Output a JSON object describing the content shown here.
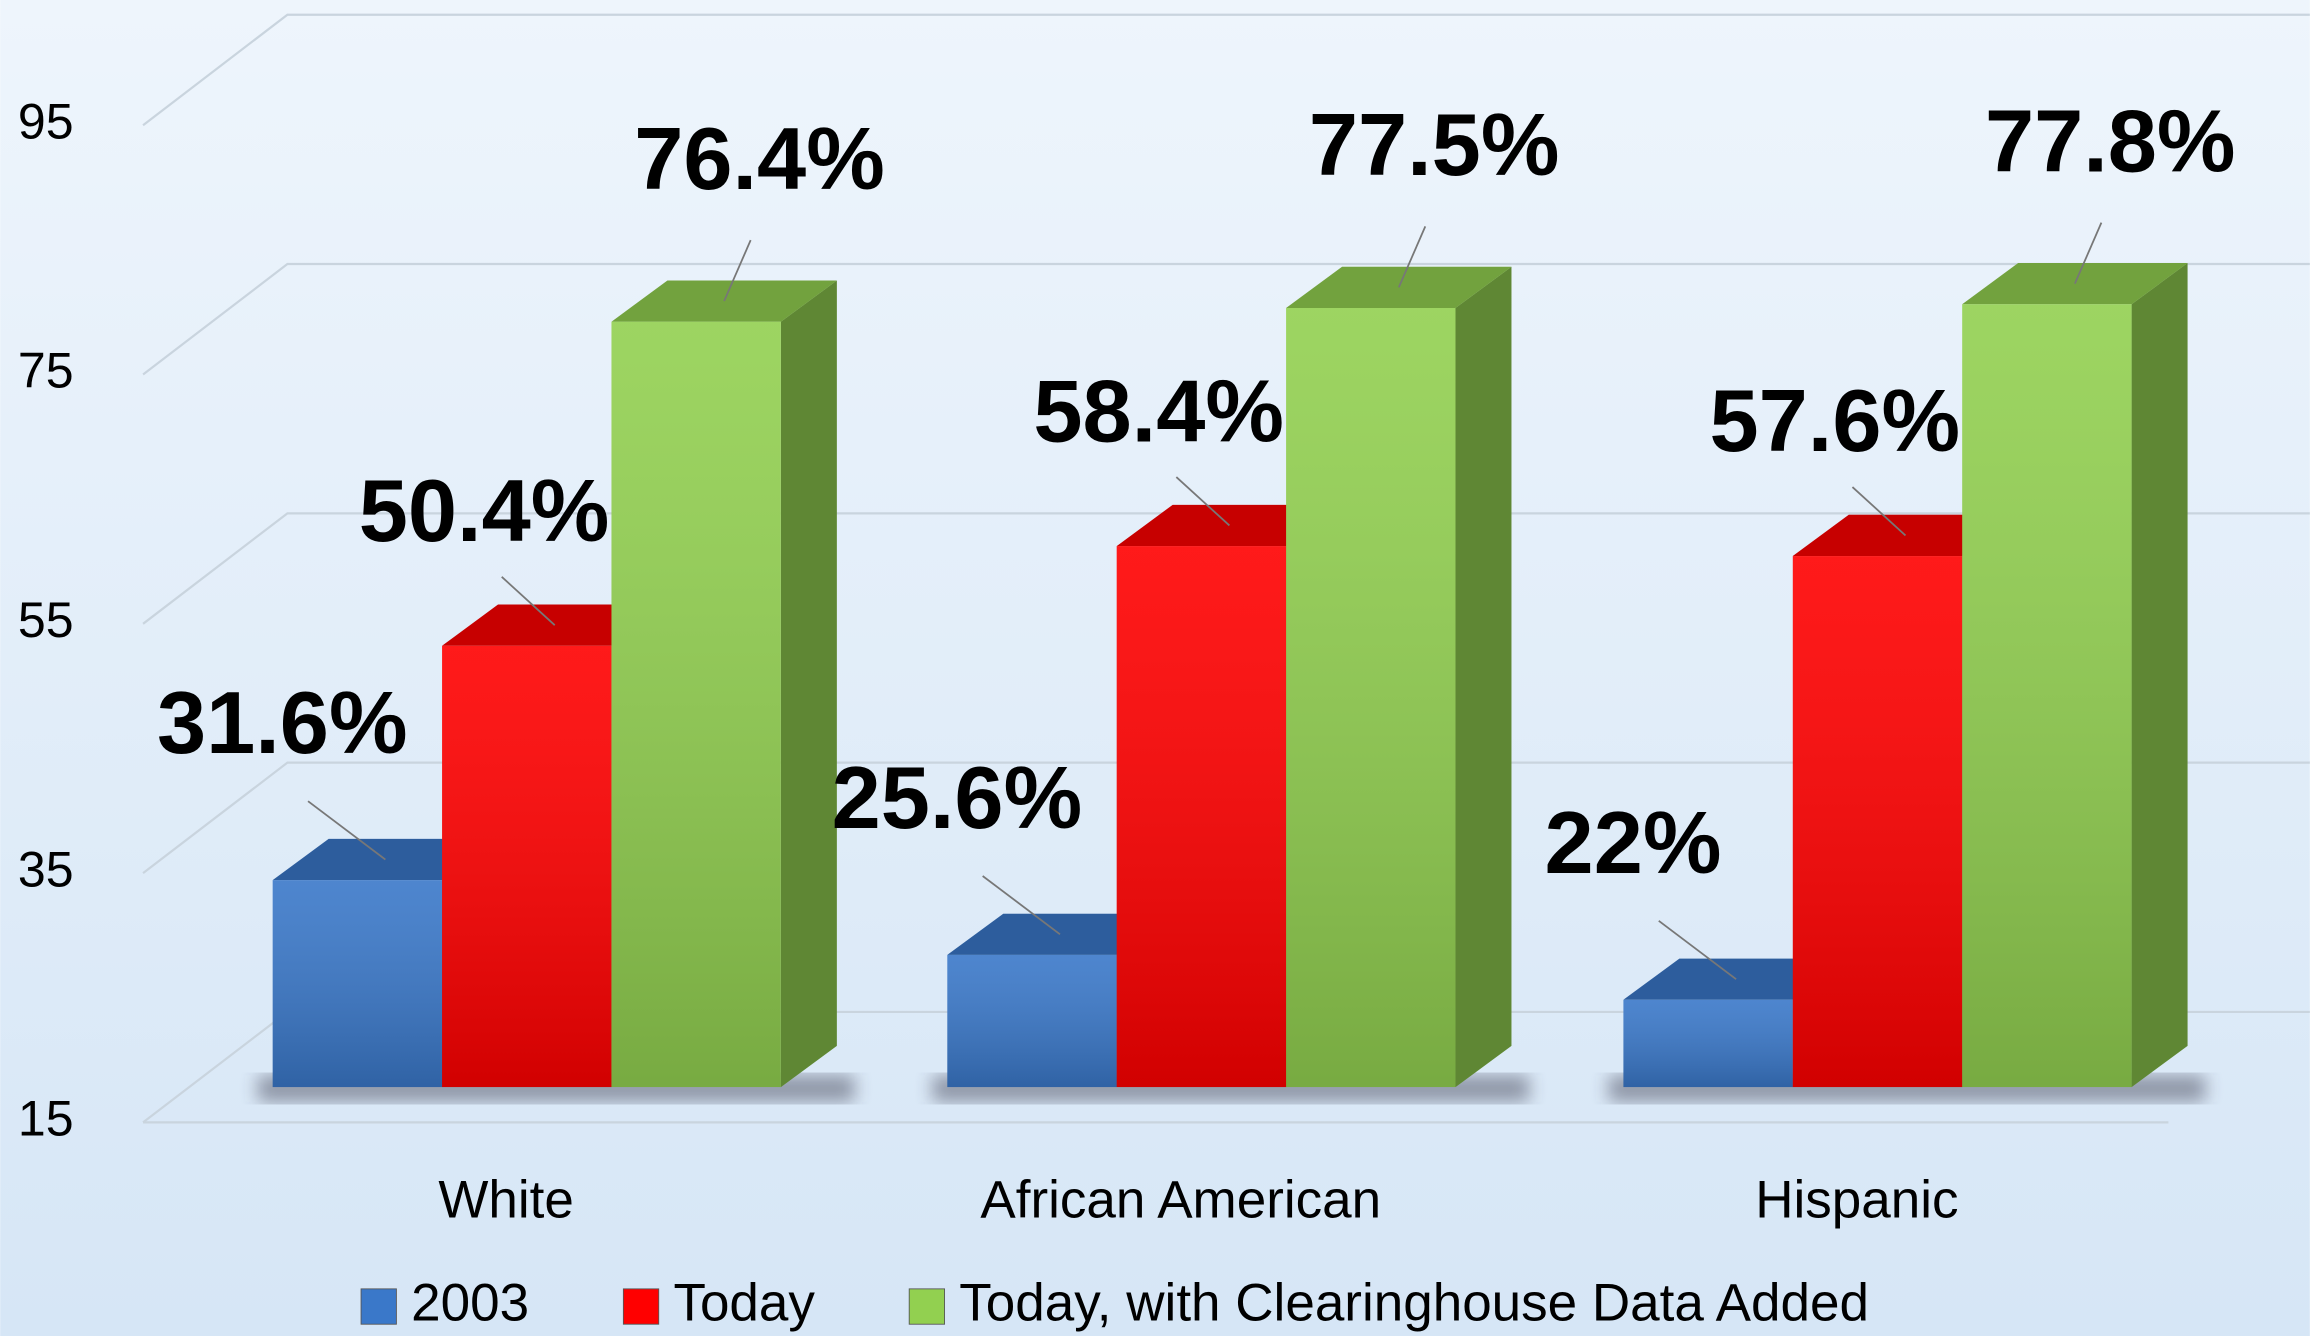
{
  "chart_data": {
    "type": "bar3d",
    "categories": [
      "White",
      "African American",
      "Hispanic"
    ],
    "series": [
      {
        "name": "2003",
        "color": "#3a78c9",
        "values": [
          31.6,
          25.6,
          22
        ],
        "value_labels": [
          "31.6%",
          "25.6%",
          "22%"
        ]
      },
      {
        "name": "Today",
        "color": "#ff0000",
        "values": [
          50.4,
          58.4,
          57.6
        ],
        "value_labels": [
          "50.4%",
          "58.4%",
          "57.6%"
        ]
      },
      {
        "name": "Today, with Clearinghouse Data Added",
        "color": "#92d050",
        "values": [
          76.4,
          77.5,
          77.8
        ],
        "value_labels": [
          "76.4%",
          "77.5%",
          "77.8%"
        ]
      }
    ],
    "ylim": [
      15,
      95
    ],
    "yticks": [
      15,
      35,
      55,
      75,
      95
    ],
    "grid": true,
    "legend": "bottom"
  }
}
